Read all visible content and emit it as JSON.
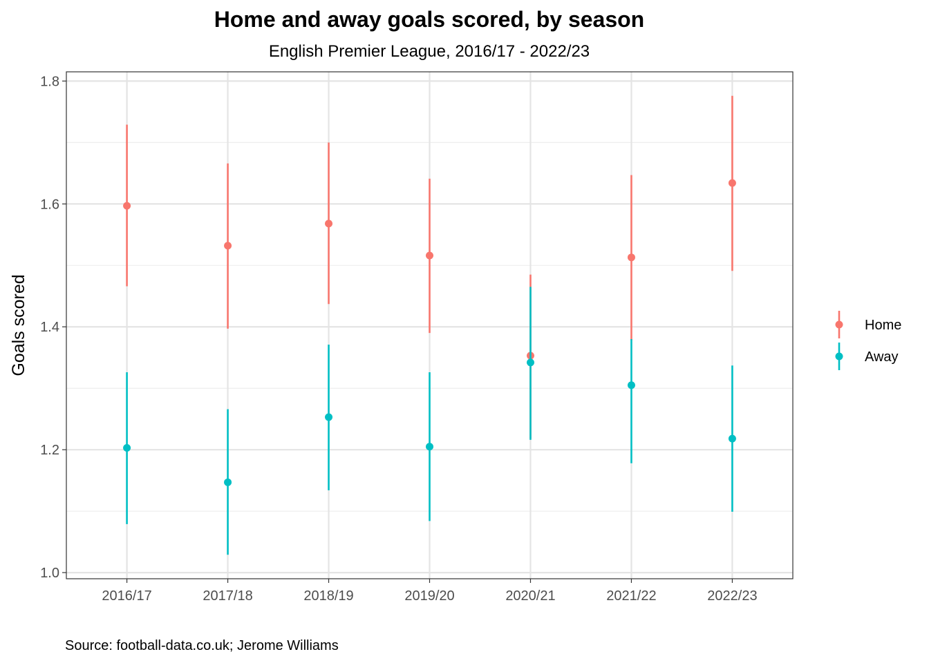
{
  "chart_data": {
    "type": "scatter",
    "title": "Home and away goals scored, by season",
    "subtitle": "English Premier League, 2016/17 - 2022/23",
    "xlabel": "",
    "ylabel": "Goals scored",
    "caption": "Source: football-data.co.uk; Jerome Williams",
    "categories": [
      "2016/17",
      "2017/18",
      "2018/19",
      "2019/20",
      "2020/21",
      "2021/22",
      "2022/23"
    ],
    "ylim": [
      0.99,
      1.815
    ],
    "yticks": [
      1.0,
      1.2,
      1.4,
      1.6,
      1.8
    ],
    "ytick_labels": [
      "1.0",
      "1.2",
      "1.4",
      "1.6",
      "1.8"
    ],
    "grid": true,
    "legend_position": "right",
    "series": [
      {
        "name": "Home",
        "color": "#F8766D",
        "values": [
          1.597,
          1.532,
          1.568,
          1.516,
          1.353,
          1.513,
          1.634
        ],
        "lower": [
          1.466,
          1.397,
          1.437,
          1.39,
          1.218,
          1.378,
          1.491
        ],
        "upper": [
          1.729,
          1.666,
          1.7,
          1.641,
          1.485,
          1.647,
          1.776
        ]
      },
      {
        "name": "Away",
        "color": "#00BFC4",
        "values": [
          1.203,
          1.147,
          1.253,
          1.205,
          1.342,
          1.305,
          1.218
        ],
        "lower": [
          1.079,
          1.029,
          1.134,
          1.084,
          1.216,
          1.178,
          1.099
        ],
        "upper": [
          1.326,
          1.266,
          1.371,
          1.326,
          1.465,
          1.38,
          1.337
        ]
      }
    ]
  }
}
